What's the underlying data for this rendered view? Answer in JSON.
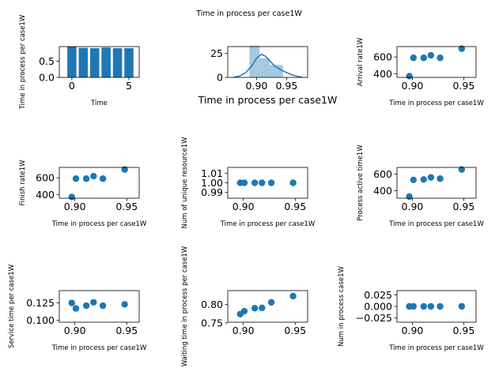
{
  "figure": {
    "title": "Time in process per case1W"
  },
  "colors": {
    "primary": "#1f77b4",
    "hist_fill": "#1f77b4",
    "axis": "#000000"
  },
  "chart_data": [
    {
      "id": "p1",
      "type": "bar",
      "title": "",
      "xlabel": "Time",
      "ylabel": "Time in process per case1W",
      "x": [
        0,
        1,
        2,
        3,
        4,
        5
      ],
      "values": [
        0.95,
        0.91,
        0.9,
        0.92,
        0.9,
        0.9
      ],
      "xlim": [
        -1.1,
        5.9
      ],
      "ylim": [
        0,
        0.95
      ],
      "xticks": [
        0,
        5
      ],
      "xtick_labels": [
        "0",
        "5"
      ],
      "yticks": [
        0,
        0.5
      ],
      "ytick_labels": [
        "0.0",
        "0.5"
      ],
      "grid": false
    },
    {
      "id": "p2",
      "type": "area",
      "title": "",
      "xlabel": "Time in process per case1W",
      "ylabel": "",
      "bins": [
        [
          0.888,
          0.905,
          33
        ],
        [
          0.905,
          0.922,
          20
        ],
        [
          0.922,
          0.944,
          13
        ]
      ],
      "kde": {
        "x": [
          0.862,
          0.872,
          0.882,
          0.892,
          0.9,
          0.908,
          0.915,
          0.922,
          0.93,
          0.94,
          0.95,
          0.96,
          0.968,
          0.976
        ],
        "y": [
          0,
          1.5,
          5,
          12,
          20,
          24,
          22,
          17,
          12,
          8,
          5,
          2.5,
          1,
          0.2
        ]
      },
      "xlim": [
        0.852,
        0.985
      ],
      "ylim": [
        0,
        32
      ],
      "xticks": [
        0.9,
        0.95
      ],
      "xtick_labels": [
        "0.90",
        "0.95"
      ],
      "yticks": [
        0,
        25
      ],
      "ytick_labels": [
        "0",
        "25"
      ],
      "grid": false
    },
    {
      "id": "p3",
      "type": "scatter",
      "title": "",
      "xlabel": "Time in process per case1W",
      "ylabel": "Arrival rate1W",
      "x": [
        0.897,
        0.901,
        0.911,
        0.918,
        0.927,
        0.948
      ],
      "y": [
        370,
        590,
        590,
        620,
        590,
        700
      ],
      "xlim": [
        0.885,
        0.962
      ],
      "ylim": [
        355,
        725
      ],
      "xticks": [
        0.9,
        0.95
      ],
      "xtick_labels": [
        "0.90",
        "0.95"
      ],
      "yticks": [
        400,
        600
      ],
      "ytick_labels": [
        "400",
        "600"
      ],
      "grid": false
    },
    {
      "id": "p4",
      "type": "scatter",
      "title": "",
      "xlabel": "Time in process per case1W",
      "ylabel": "Finish rate1W",
      "x": [
        0.897,
        0.901,
        0.911,
        0.918,
        0.927,
        0.948
      ],
      "y": [
        370,
        590,
        590,
        620,
        590,
        700
      ],
      "xlim": [
        0.885,
        0.962
      ],
      "ylim": [
        355,
        725
      ],
      "xticks": [
        0.9,
        0.95
      ],
      "xtick_labels": [
        "0.90",
        "0.95"
      ],
      "yticks": [
        400,
        600
      ],
      "ytick_labels": [
        "400",
        "600"
      ],
      "grid": false
    },
    {
      "id": "p5",
      "type": "scatter",
      "title": "",
      "xlabel": "Time in process per case1W",
      "ylabel": "Num of unique resource1W",
      "x": [
        0.897,
        0.901,
        0.911,
        0.918,
        0.927,
        0.948
      ],
      "y": [
        1,
        1,
        1,
        1,
        1,
        1
      ],
      "xlim": [
        0.885,
        0.962
      ],
      "ylim": [
        0.984,
        1.016
      ],
      "xticks": [
        0.9,
        0.95
      ],
      "xtick_labels": [
        "0.90",
        "0.95"
      ],
      "yticks": [
        0.99,
        1.0,
        1.01
      ],
      "ytick_labels": [
        "0.99",
        "1.00",
        "1.01"
      ],
      "grid": false
    },
    {
      "id": "p6",
      "type": "scatter",
      "title": "",
      "xlabel": "Time in process per case1W",
      "ylabel": "Process active time1W",
      "x": [
        0.897,
        0.901,
        0.911,
        0.918,
        0.927,
        0.948
      ],
      "y": [
        330,
        530,
        535,
        560,
        545,
        655
      ],
      "xlim": [
        0.885,
        0.962
      ],
      "ylim": [
        310,
        680
      ],
      "xticks": [
        0.9,
        0.95
      ],
      "xtick_labels": [
        "0.90",
        "0.95"
      ],
      "yticks": [
        400,
        600
      ],
      "ytick_labels": [
        "400",
        "600"
      ],
      "grid": false
    },
    {
      "id": "p7",
      "type": "scatter",
      "title": "",
      "xlabel": "Time in process per case1W",
      "ylabel": "Service time per case1W",
      "x": [
        0.897,
        0.901,
        0.911,
        0.918,
        0.927,
        0.948
      ],
      "y": [
        0.125,
        0.117,
        0.121,
        0.126,
        0.121,
        0.123
      ],
      "xlim": [
        0.885,
        0.962
      ],
      "ylim": [
        0.097,
        0.143
      ],
      "xticks": [
        0.9,
        0.95
      ],
      "xtick_labels": [
        "0.90",
        "0.95"
      ],
      "yticks": [
        0.1,
        0.125
      ],
      "ytick_labels": [
        "0.100",
        "0.125"
      ],
      "grid": false
    },
    {
      "id": "p8",
      "type": "scatter",
      "title": "",
      "xlabel": "",
      "ylabel": "Waiting time in process per case1W",
      "x": [
        0.897,
        0.901,
        0.911,
        0.918,
        0.927,
        0.948
      ],
      "y": [
        0.774,
        0.782,
        0.79,
        0.791,
        0.806,
        0.823
      ],
      "xlim": [
        0.885,
        0.962
      ],
      "ylim": [
        0.752,
        0.838
      ],
      "xticks": [
        0.9,
        0.95
      ],
      "xtick_labels": [
        "0.90",
        "0.95"
      ],
      "yticks": [
        0.75,
        0.8
      ],
      "ytick_labels": [
        "0.75",
        "0.80"
      ],
      "grid": false
    },
    {
      "id": "p9",
      "type": "scatter",
      "title": "",
      "xlabel": "Time in process per case1W",
      "ylabel": "Num in process case1W",
      "x": [
        0.897,
        0.901,
        0.911,
        0.918,
        0.927,
        0.948
      ],
      "y": [
        0,
        0,
        0,
        0,
        0,
        0
      ],
      "xlim": [
        0.885,
        0.962
      ],
      "ylim": [
        -0.034,
        0.034
      ],
      "xticks": [
        0.9,
        0.95
      ],
      "xtick_labels": [
        "0.90",
        "0.95"
      ],
      "yticks": [
        -0.025,
        0.0,
        0.025
      ],
      "ytick_labels": [
        "−0.025",
        "0.000",
        "0.025"
      ],
      "grid": false
    }
  ]
}
